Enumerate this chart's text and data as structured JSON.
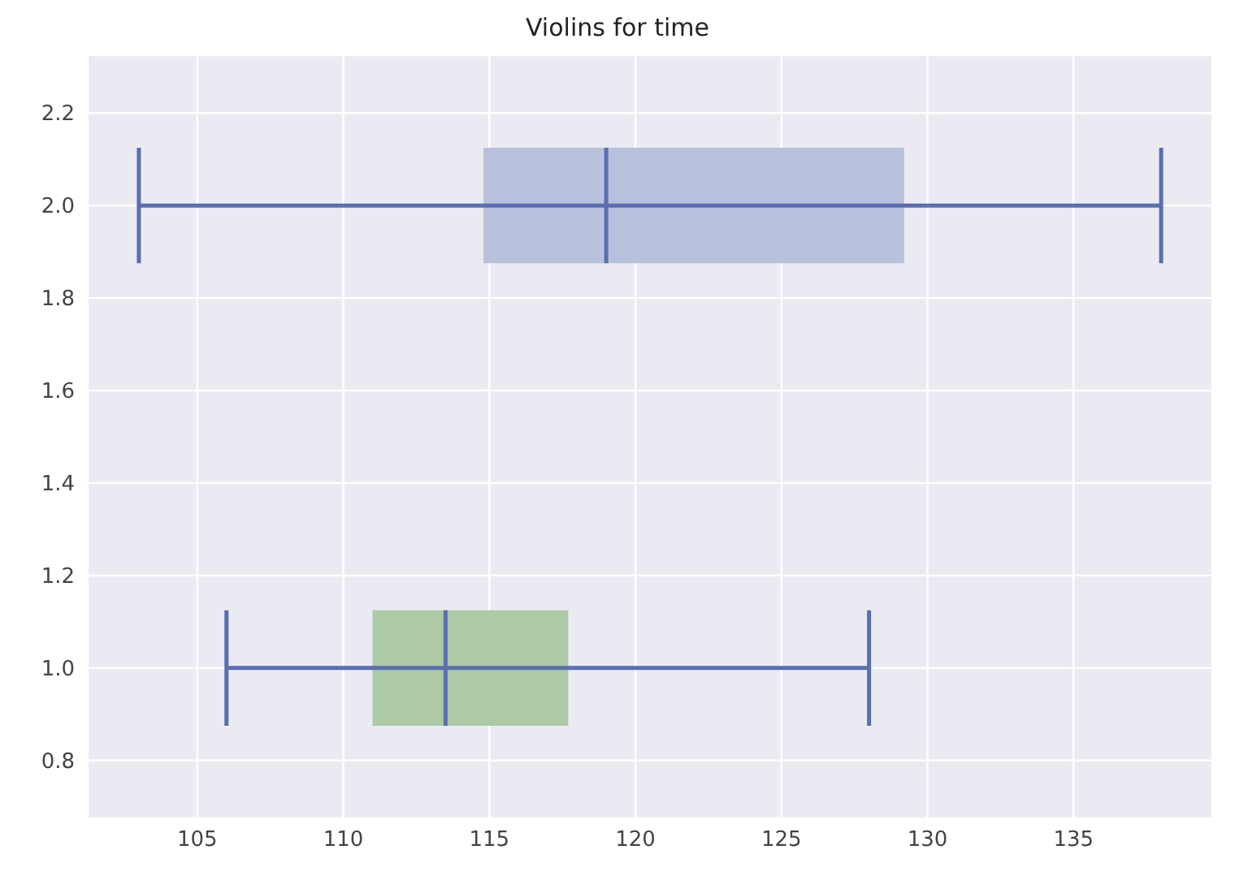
{
  "chart_data": {
    "type": "box",
    "title": "Violins for time",
    "orientation": "horizontal",
    "xlim": [
      101.25,
      139.75
    ],
    "xticks": [
      105,
      110,
      115,
      120,
      125,
      130,
      135
    ],
    "ylim": [
      0.675,
      2.325
    ],
    "yticks": [
      0.8,
      {
        "value": 1,
        "label": "1.0"
      },
      1.2,
      1.4,
      1.6,
      1.8,
      {
        "value": 2,
        "label": "2.0"
      },
      2.2
    ],
    "grid": true,
    "series": [
      {
        "color": "#b8c1dc",
        "x": [
          2
        ],
        "boxes": [
          {
            "low": 103.0,
            "q1": 114.8,
            "median": 119.0,
            "q3": 129.2,
            "high": 138.0
          }
        ]
      },
      {
        "color": "#adc9a6",
        "x": [
          1
        ],
        "boxes": [
          {
            "low": 106.0,
            "q1": 111.0,
            "median": 113.5,
            "q3": 117.7,
            "high": 128.0
          }
        ]
      }
    ]
  }
}
